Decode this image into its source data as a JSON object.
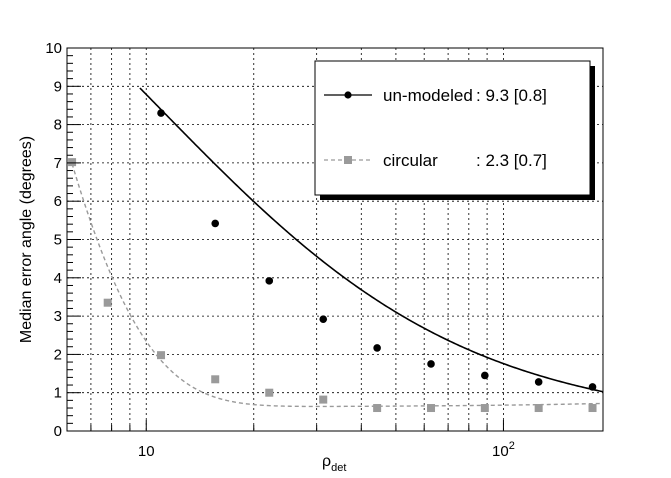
{
  "chart_data": {
    "type": "scatter",
    "title": "",
    "xlabel": "ρ",
    "xlabel_sub": "det",
    "ylabel": "Median error angle (degrees)",
    "xscale": "log",
    "xlim": [
      6,
      190
    ],
    "ylim": [
      0,
      10
    ],
    "grid": true,
    "legend_placement": "top-right",
    "x_tick_labels": [
      {
        "value": 10,
        "base": "10",
        "exp": ""
      },
      {
        "value": 100,
        "base": "10",
        "exp": "2"
      }
    ],
    "y_tick_labels": [
      "0",
      "1",
      "2",
      "3",
      "4",
      "5",
      "6",
      "7",
      "8",
      "9",
      "10"
    ],
    "series": [
      {
        "name": "un-modeled",
        "legend_value": ": 9.3  [0.8]",
        "marker": "circle",
        "color": "#000000",
        "line_style": "solid",
        "x": [
          11,
          15.6,
          22.1,
          31.3,
          44.3,
          62.7,
          88.7,
          125.5,
          177.6
        ],
        "y": [
          8.3,
          5.42,
          3.92,
          2.92,
          2.17,
          1.75,
          1.45,
          1.28,
          1.15
        ],
        "fit": {
          "form": "a + b/(x - c)",
          "a": 0.12,
          "b": 182,
          "c": -11
        }
      },
      {
        "name": "circular",
        "legend_value": ": 2.3  [0.7]",
        "marker": "square",
        "color": "#9a9a9a",
        "line_style": "dashed",
        "x": [
          6.2,
          7.8,
          11,
          15.6,
          22.1,
          31.3,
          44.3,
          62.7,
          88.7,
          125.5,
          177.6
        ],
        "y": [
          7.02,
          3.35,
          1.98,
          1.35,
          1.0,
          0.82,
          0.6,
          0.6,
          0.6,
          0.6,
          0.6
        ],
        "fit": {
          "form": "a + b*exp(-(x - x0)/t) + s*(x - 30)",
          "a": 0.64,
          "b": 6.35,
          "x0": 6.2,
          "t": 2.9,
          "s": 0.0005
        }
      }
    ]
  }
}
